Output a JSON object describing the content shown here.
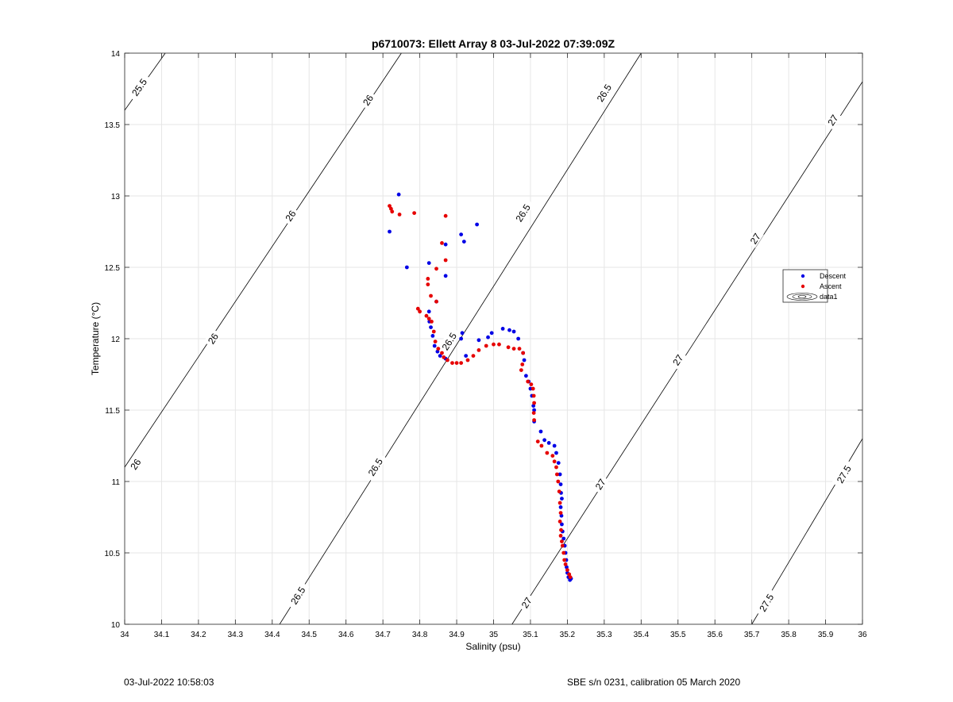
{
  "chart_data": {
    "type": "scatter",
    "title": "p6710073: Ellett Array 8 03-Jul-2022 07:39:09Z",
    "xlabel": "Salinity (psu)",
    "ylabel": "Temperature (°C)",
    "xlim": [
      34,
      36
    ],
    "ylim": [
      10,
      14
    ],
    "xticks": [
      "34",
      "34.1",
      "34.2",
      "34.3",
      "34.4",
      "34.5",
      "34.6",
      "34.7",
      "34.8",
      "34.9",
      "35",
      "35.1",
      "35.2",
      "35.3",
      "35.4",
      "35.5",
      "35.6",
      "35.7",
      "35.8",
      "35.9",
      "36"
    ],
    "yticks": [
      "10",
      "10.5",
      "11",
      "11.5",
      "12",
      "12.5",
      "13",
      "13.5",
      "14"
    ],
    "grid": true,
    "legend_position": "right",
    "legend": [
      "Descent",
      "Ascent",
      "data1"
    ],
    "colors": {
      "descent": "#0000e6",
      "ascent": "#e60000",
      "contour": "#000000",
      "grid": "#e6e6e6",
      "axis": "#262626"
    },
    "series": [
      {
        "name": "Descent",
        "marker": "dot",
        "points": [
          [
            34.743,
            13.01
          ],
          [
            34.718,
            12.75
          ],
          [
            34.765,
            12.5
          ],
          [
            34.825,
            12.53
          ],
          [
            34.845,
            12.26
          ],
          [
            34.87,
            12.66
          ],
          [
            34.87,
            12.44
          ],
          [
            34.912,
            12.73
          ],
          [
            34.92,
            12.68
          ],
          [
            34.955,
            12.8
          ],
          [
            34.825,
            12.19
          ],
          [
            34.826,
            12.12
          ],
          [
            34.83,
            12.08
          ],
          [
            34.835,
            12.02
          ],
          [
            34.84,
            11.95
          ],
          [
            34.848,
            11.91
          ],
          [
            34.855,
            11.88
          ],
          [
            34.87,
            11.86
          ],
          [
            34.912,
            12.0
          ],
          [
            34.915,
            12.04
          ],
          [
            34.925,
            11.88
          ],
          [
            34.96,
            11.99
          ],
          [
            34.985,
            12.01
          ],
          [
            34.995,
            12.04
          ],
          [
            35.025,
            12.07
          ],
          [
            35.043,
            12.06
          ],
          [
            35.055,
            12.05
          ],
          [
            35.067,
            12.0
          ],
          [
            35.08,
            11.9
          ],
          [
            35.083,
            11.85
          ],
          [
            35.088,
            11.74
          ],
          [
            35.095,
            11.7
          ],
          [
            35.1,
            11.65
          ],
          [
            35.104,
            11.6
          ],
          [
            35.108,
            11.53
          ],
          [
            35.11,
            11.5
          ],
          [
            35.11,
            11.42
          ],
          [
            35.128,
            11.35
          ],
          [
            35.138,
            11.29
          ],
          [
            35.15,
            11.27
          ],
          [
            35.165,
            11.25
          ],
          [
            35.17,
            11.2
          ],
          [
            35.176,
            11.13
          ],
          [
            35.18,
            11.05
          ],
          [
            35.182,
            10.98
          ],
          [
            35.183,
            10.92
          ],
          [
            35.185,
            10.88
          ],
          [
            35.182,
            10.82
          ],
          [
            35.184,
            10.76
          ],
          [
            35.185,
            10.7
          ],
          [
            35.187,
            10.65
          ],
          [
            35.19,
            10.6
          ],
          [
            35.193,
            10.55
          ],
          [
            35.195,
            10.5
          ],
          [
            35.197,
            10.45
          ],
          [
            35.198,
            10.4
          ],
          [
            35.2,
            10.36
          ],
          [
            35.203,
            10.33
          ],
          [
            35.207,
            10.31
          ],
          [
            35.21,
            10.32
          ]
        ]
      },
      {
        "name": "Ascent",
        "marker": "dot",
        "points": [
          [
            34.718,
            12.93
          ],
          [
            34.722,
            12.91
          ],
          [
            34.725,
            12.89
          ],
          [
            34.745,
            12.87
          ],
          [
            34.785,
            12.88
          ],
          [
            34.87,
            12.86
          ],
          [
            34.86,
            12.67
          ],
          [
            34.87,
            12.55
          ],
          [
            34.845,
            12.49
          ],
          [
            34.822,
            12.42
          ],
          [
            34.822,
            12.38
          ],
          [
            34.83,
            12.3
          ],
          [
            34.845,
            12.26
          ],
          [
            34.795,
            12.21
          ],
          [
            34.8,
            12.19
          ],
          [
            34.818,
            12.16
          ],
          [
            34.825,
            12.14
          ],
          [
            34.832,
            12.12
          ],
          [
            34.838,
            12.05
          ],
          [
            34.842,
            11.98
          ],
          [
            34.85,
            11.93
          ],
          [
            34.86,
            11.9
          ],
          [
            34.865,
            11.87
          ],
          [
            34.875,
            11.85
          ],
          [
            34.888,
            11.83
          ],
          [
            34.9,
            11.83
          ],
          [
            34.912,
            11.83
          ],
          [
            34.93,
            11.85
          ],
          [
            34.945,
            11.88
          ],
          [
            34.96,
            11.92
          ],
          [
            34.98,
            11.95
          ],
          [
            35.0,
            11.96
          ],
          [
            35.015,
            11.96
          ],
          [
            35.04,
            11.94
          ],
          [
            35.055,
            11.93
          ],
          [
            35.07,
            11.93
          ],
          [
            35.08,
            11.9
          ],
          [
            35.078,
            11.82
          ],
          [
            35.075,
            11.78
          ],
          [
            35.093,
            11.7
          ],
          [
            35.102,
            11.68
          ],
          [
            35.107,
            11.65
          ],
          [
            35.109,
            11.6
          ],
          [
            35.11,
            11.55
          ],
          [
            35.109,
            11.48
          ],
          [
            35.11,
            11.43
          ],
          [
            35.12,
            11.28
          ],
          [
            35.13,
            11.25
          ],
          [
            35.145,
            11.2
          ],
          [
            35.16,
            11.18
          ],
          [
            35.165,
            11.14
          ],
          [
            35.17,
            11.1
          ],
          [
            35.172,
            11.05
          ],
          [
            35.175,
            11.0
          ],
          [
            35.178,
            10.93
          ],
          [
            35.18,
            10.85
          ],
          [
            35.182,
            10.78
          ],
          [
            35.18,
            10.72
          ],
          [
            35.183,
            10.66
          ],
          [
            35.182,
            10.62
          ],
          [
            35.185,
            10.58
          ],
          [
            35.187,
            10.55
          ],
          [
            35.19,
            10.5
          ],
          [
            35.192,
            10.45
          ],
          [
            35.195,
            10.42
          ],
          [
            35.2,
            10.38
          ],
          [
            35.205,
            10.35
          ],
          [
            35.208,
            10.33
          ]
        ]
      },
      {
        "name": "data1",
        "type": "contour",
        "levels": [
          {
            "value": 25.5,
            "line": [
              [
                34.0,
                13.6
              ],
              [
                34.11,
                14.0
              ]
            ],
            "labels": [
              {
                "text": "25.5",
                "x": 34.04,
                "y": 13.76
              }
            ]
          },
          {
            "value": 26.0,
            "line": [
              [
                34.0,
                11.1
              ],
              [
                34.75,
                14.0
              ]
            ],
            "labels": [
              {
                "text": "26",
                "x": 34.03,
                "y": 11.12
              },
              {
                "text": "26",
                "x": 34.24,
                "y": 12.0
              },
              {
                "text": "26",
                "x": 34.45,
                "y": 12.86
              },
              {
                "text": "26",
                "x": 34.66,
                "y": 13.67
              }
            ]
          },
          {
            "value": 26.5,
            "line": [
              [
                34.42,
                10.0
              ],
              [
                35.4,
                14.0
              ]
            ],
            "labels": [
              {
                "text": "26.5",
                "x": 34.47,
                "y": 10.2
              },
              {
                "text": "26.5",
                "x": 34.68,
                "y": 11.1
              },
              {
                "text": "26.5",
                "x": 34.88,
                "y": 11.98
              },
              {
                "text": "26.5",
                "x": 35.08,
                "y": 12.88
              },
              {
                "text": "26.5",
                "x": 35.3,
                "y": 13.72
              }
            ]
          },
          {
            "value": 27.0,
            "line": [
              [
                35.05,
                10.0
              ],
              [
                36.0,
                13.8
              ]
            ],
            "labels": [
              {
                "text": "27",
                "x": 35.09,
                "y": 10.15
              },
              {
                "text": "27",
                "x": 35.29,
                "y": 10.98
              },
              {
                "text": "27",
                "x": 35.5,
                "y": 11.85
              },
              {
                "text": "27",
                "x": 35.71,
                "y": 12.7
              },
              {
                "text": "27",
                "x": 35.92,
                "y": 13.53
              }
            ]
          },
          {
            "value": 27.5,
            "line": [
              [
                35.7,
                10.0
              ],
              [
                36.0,
                11.3
              ]
            ],
            "labels": [
              {
                "text": "27.5",
                "x": 35.74,
                "y": 10.15
              },
              {
                "text": "27.5",
                "x": 35.95,
                "y": 11.05
              }
            ]
          }
        ]
      }
    ]
  },
  "footer": {
    "left": "03-Jul-2022 10:58:03",
    "right": "SBE s/n 0231, calibration 05 March 2020"
  }
}
